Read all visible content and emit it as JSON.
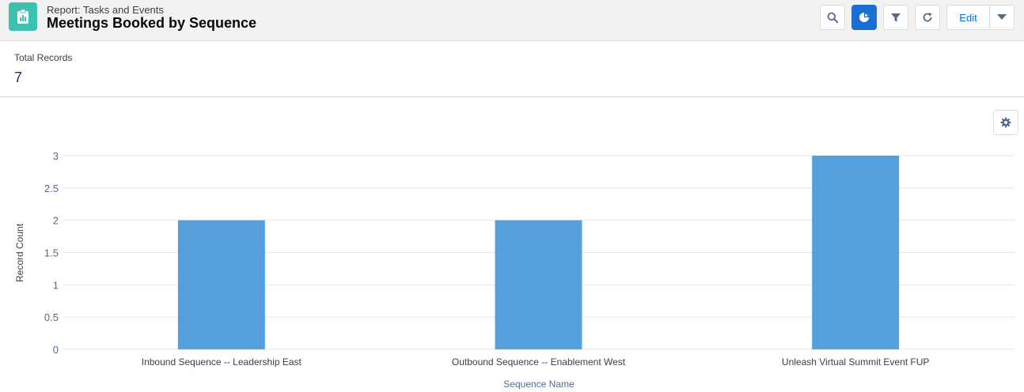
{
  "header": {
    "subtitle": "Report: Tasks and Events",
    "title": "Meetings Booked by Sequence",
    "edit_label": "Edit"
  },
  "summary": {
    "label": "Total Records",
    "value": "7"
  },
  "icons": {
    "app": "report-clipboard-icon",
    "search": "search-icon",
    "chart": "pie-chart-icon",
    "filter": "filter-icon",
    "refresh": "refresh-icon",
    "caret": "chevron-down-icon",
    "settings": "gear-icon"
  },
  "colors": {
    "bar": "#54a0dc",
    "accent": "#1b6fd4",
    "app_icon": "#3cc1b1"
  },
  "chart_data": {
    "type": "bar",
    "categories": [
      "Inbound Sequence -- Leadership East",
      "Outbound Sequence -- Enablement West",
      "Unleash Virtual Summit Event FUP"
    ],
    "values": [
      2,
      2,
      3
    ],
    "xlabel": "Sequence Name",
    "ylabel": "Record Count",
    "ylim": [
      0,
      3
    ],
    "yticks": [
      "0",
      "0.5",
      "1",
      "1.5",
      "2",
      "2.5",
      "3"
    ],
    "grid": true,
    "legend": "none"
  }
}
